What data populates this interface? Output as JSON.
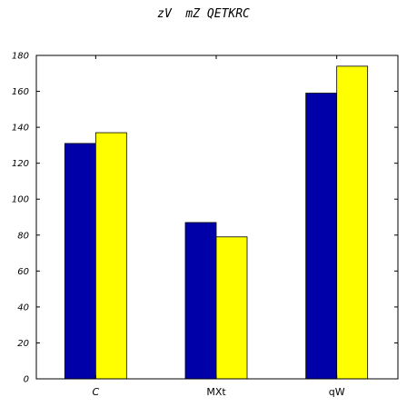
{
  "chart_data": {
    "type": "bar",
    "title": "zV  mZ QETKRC",
    "xlabel": "",
    "ylabel": "",
    "categories": [
      "C",
      "MXt",
      "qW"
    ],
    "category_italic": [
      true,
      false,
      false
    ],
    "series": [
      {
        "values": [
          131,
          87,
          159
        ],
        "color": "#0000a8"
      },
      {
        "values": [
          137,
          79,
          174
        ],
        "color": "#ffff00"
      }
    ],
    "ylim": [
      0,
      180
    ],
    "yticks": [
      0,
      20,
      40,
      60,
      80,
      100,
      120,
      140,
      160,
      180
    ],
    "grid": false,
    "legend": "none"
  }
}
